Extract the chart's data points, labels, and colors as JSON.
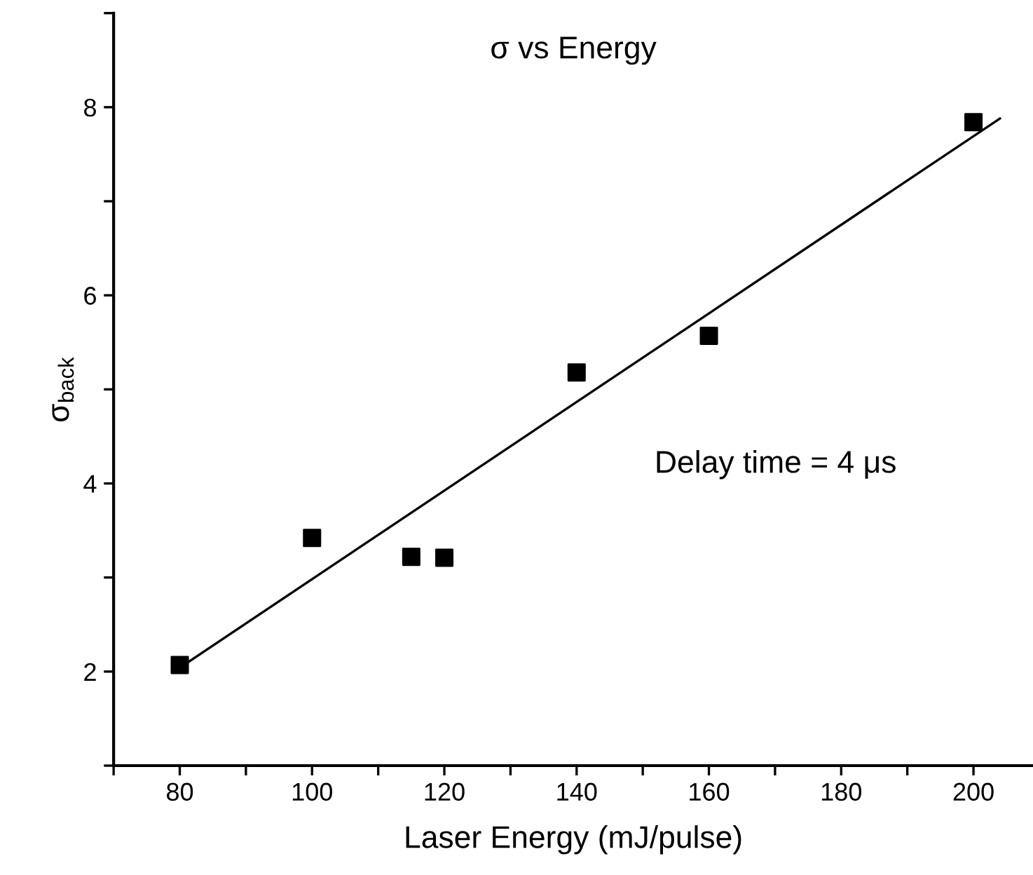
{
  "chart_data": {
    "type": "scatter",
    "title": "σ vs Energy",
    "xlabel": "Laser Energy (mJ/pulse)",
    "ylabel": "σ$_{back}$",
    "x": [
      80,
      100,
      115,
      120,
      140,
      160,
      200
    ],
    "series": [
      {
        "color": "#000000",
        "marker": "square",
        "values": [
          2.07,
          3.42,
          3.22,
          3.21,
          5.18,
          5.57,
          7.84
        ]
      },
      {
        "type": "line",
        "color": "#000000",
        "line_style": "solid",
        "x": [
          80,
          204
        ],
        "values": [
          2.04,
          7.88
        ]
      }
    ],
    "annotations": [
      "Delay time = 4 μs"
    ],
    "xlim": [
      70,
      209
    ],
    "ylim": [
      1,
      9
    ],
    "xticks": [
      {
        "value": 70,
        "label": null
      },
      80,
      {
        "value": 90,
        "label": null
      },
      100,
      {
        "value": 110,
        "label": null
      },
      120,
      {
        "value": 130,
        "label": null
      },
      140,
      {
        "value": 150,
        "label": null
      },
      160,
      {
        "value": 170,
        "label": null
      },
      180,
      {
        "value": 190,
        "label": null
      },
      200
    ],
    "yticks": [
      {
        "value": 1,
        "label": null
      },
      2,
      {
        "value": 3,
        "label": null
      },
      4,
      {
        "value": 5,
        "label": null
      },
      6,
      {
        "value": 7,
        "label": null
      },
      8,
      {
        "value": 9,
        "label": null
      }
    ],
    "grid": false,
    "legend": false
  }
}
